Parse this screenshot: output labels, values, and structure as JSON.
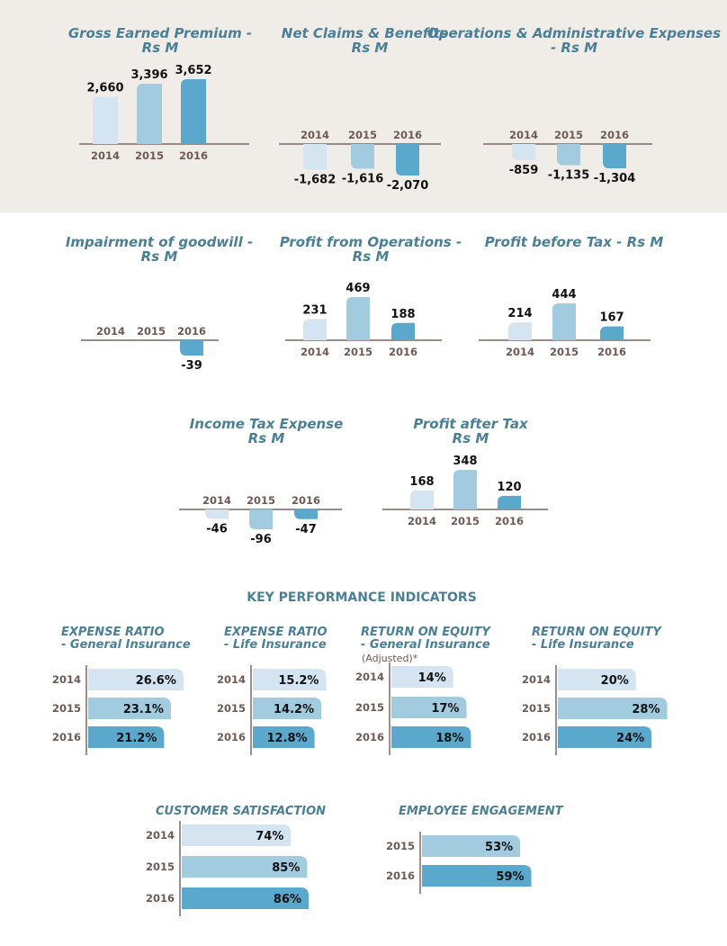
{
  "colors": {
    "2014": "#d4e5f1",
    "2015": "#a2cbe0",
    "2016": "#5aa8cc"
  },
  "chart_data": [
    {
      "type": "bar",
      "title": "Gross Earned Premium - Rs M",
      "categories": [
        "2014",
        "2015",
        "2016"
      ],
      "values": [
        2660,
        3396,
        3652
      ],
      "labels": [
        "2,660",
        "3,396",
        "3,652"
      ]
    },
    {
      "type": "bar",
      "title": "Net Claims & Benefits - Rs M",
      "categories": [
        "2014",
        "2015",
        "2016"
      ],
      "values": [
        -1682,
        -1616,
        -2070
      ],
      "labels": [
        "-1,682",
        "-1,616",
        "-2,070"
      ]
    },
    {
      "type": "bar",
      "title": "Operations & Administrative Expenses - Rs M",
      "categories": [
        "2014",
        "2015",
        "2016"
      ],
      "values": [
        -859,
        -1135,
        -1304
      ],
      "labels": [
        "-859",
        "-1,135",
        "-1,304"
      ]
    },
    {
      "type": "bar",
      "title": "Impairment of goodwill - Rs M",
      "categories": [
        "2014",
        "2015",
        "2016"
      ],
      "values": [
        null,
        null,
        -39
      ],
      "labels": [
        "",
        "",
        "-39"
      ]
    },
    {
      "type": "bar",
      "title": "Profit from Operations - Rs M",
      "categories": [
        "2014",
        "2015",
        "2016"
      ],
      "values": [
        231,
        469,
        188
      ],
      "labels": [
        "231",
        "469",
        "188"
      ]
    },
    {
      "type": "bar",
      "title": "Profit before Tax - Rs M",
      "categories": [
        "2014",
        "2015",
        "2016"
      ],
      "values": [
        214,
        444,
        167
      ],
      "labels": [
        "214",
        "444",
        "167"
      ]
    },
    {
      "type": "bar",
      "title": "Income Tax Expense Rs M",
      "categories": [
        "2014",
        "2015",
        "2016"
      ],
      "values": [
        -46,
        -96,
        -47
      ],
      "labels": [
        "-46",
        "-96",
        "-47"
      ]
    },
    {
      "type": "bar",
      "title": "Profit after Tax Rs M",
      "categories": [
        "2014",
        "2015",
        "2016"
      ],
      "values": [
        168,
        348,
        120
      ],
      "labels": [
        "168",
        "348",
        "120"
      ]
    }
  ],
  "kpi": {
    "heading": "KEY PERFORMANCE INDICATORS",
    "charts": [
      {
        "title1": "EXPENSE RATIO",
        "title2": "- General Insurance",
        "note": "",
        "categories": [
          "2014",
          "2015",
          "2016"
        ],
        "values": [
          26.6,
          23.1,
          21.2
        ],
        "labels": [
          "26.6%",
          "23.1%",
          "21.2%"
        ]
      },
      {
        "title1": "EXPENSE RATIO",
        "title2": "- Life Insurance",
        "note": "",
        "categories": [
          "2014",
          "2015",
          "2016"
        ],
        "values": [
          15.2,
          14.2,
          12.8
        ],
        "labels": [
          "15.2%",
          "14.2%",
          "12.8%"
        ]
      },
      {
        "title1": "RETURN ON EQUITY",
        "title2": "- General Insurance",
        "note": "(Adjusted)*",
        "categories": [
          "2014",
          "2015",
          "2016"
        ],
        "values": [
          14,
          17,
          18
        ],
        "labels": [
          "14%",
          "17%",
          "18%"
        ]
      },
      {
        "title1": "RETURN ON EQUITY",
        "title2": "- Life Insurance",
        "note": "",
        "categories": [
          "2014",
          "2015",
          "2016"
        ],
        "values": [
          20,
          28,
          24
        ],
        "labels": [
          "20%",
          "28%",
          "24%"
        ]
      },
      {
        "title1": "CUSTOMER SATISFACTION",
        "title2": "",
        "note": "",
        "categories": [
          "2014",
          "2015",
          "2016"
        ],
        "values": [
          74,
          85,
          86
        ],
        "labels": [
          "74%",
          "85%",
          "86%"
        ]
      },
      {
        "title1": "EMPLOYEE ENGAGEMENT",
        "title2": "",
        "note": "",
        "categories": [
          "2015",
          "2016"
        ],
        "values": [
          53,
          59
        ],
        "labels": [
          "53%",
          "59%"
        ]
      }
    ]
  }
}
